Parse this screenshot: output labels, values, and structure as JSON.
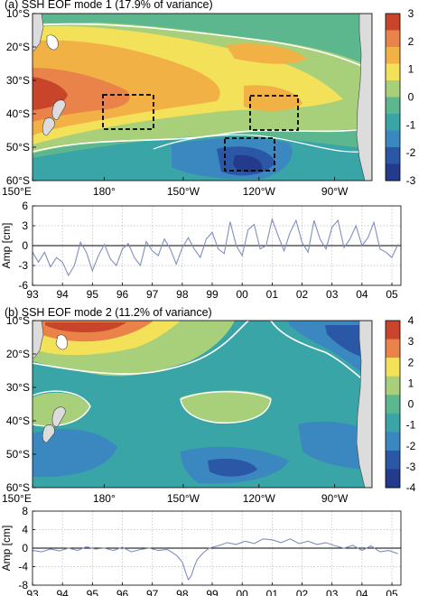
{
  "panels": [
    {
      "title": "(a) SSH EOF mode 1 (17.9% of variance)",
      "lat_ticks": [
        "10°S",
        "20°S",
        "30°S",
        "40°S",
        "50°S",
        "60°S"
      ],
      "lon_ticks": [
        "150°E",
        "180°",
        "150°W",
        "120°W",
        "90°W"
      ],
      "colorbar_ticks": [
        "3",
        "2",
        "1",
        "0",
        "-1",
        "-2",
        "-3"
      ],
      "colorbar_colors": [
        "#c8452b",
        "#e9834a",
        "#f2b145",
        "#f4e15a",
        "#a8d07a",
        "#5db78e",
        "#3aa5a6",
        "#3b88c0",
        "#2a57a6",
        "#233b8a"
      ]
    },
    {
      "title": "(b) SSH EOF mode 2 (11.2% of variance)",
      "lat_ticks": [
        "10°S",
        "20°S",
        "30°S",
        "40°S",
        "50°S",
        "60°S"
      ],
      "lon_ticks": [
        "150°E",
        "180°",
        "150°W",
        "120°W",
        "90°W"
      ],
      "colorbar_ticks": [
        "4",
        "3",
        "2",
        "1",
        "0",
        "-1",
        "-2",
        "-3",
        "-4"
      ],
      "colorbar_colors": [
        "#c8452b",
        "#e9834a",
        "#f4e15a",
        "#a8d07a",
        "#5db78e",
        "#3aa5a6",
        "#3b88c0",
        "#2a57a6",
        "#233b8a"
      ]
    }
  ],
  "chart_data": [
    {
      "type": "line",
      "ylabel": "Amp [cm]",
      "ylim": [
        -6,
        6
      ],
      "yticks": [
        6,
        3,
        0,
        -3,
        -6
      ],
      "xlim": [
        1993,
        2005.3
      ],
      "xticks": [
        "93",
        "94",
        "95",
        "96",
        "97",
        "98",
        "99",
        "00",
        "01",
        "02",
        "03",
        "04",
        "05"
      ],
      "grid": true,
      "color": "#7f8fbf",
      "x": [
        1993.0,
        1993.2,
        1993.4,
        1993.6,
        1993.8,
        1994.0,
        1994.2,
        1994.4,
        1994.6,
        1994.8,
        1995.0,
        1995.2,
        1995.4,
        1995.6,
        1995.8,
        1996.0,
        1996.2,
        1996.4,
        1996.6,
        1996.8,
        1997.0,
        1997.2,
        1997.4,
        1997.6,
        1997.8,
        1998.0,
        1998.2,
        1998.4,
        1998.6,
        1998.8,
        1999.0,
        1999.2,
        1999.4,
        1999.6,
        1999.8,
        2000.0,
        2000.2,
        2000.4,
        2000.6,
        2000.8,
        2001.0,
        2001.2,
        2001.4,
        2001.6,
        2001.8,
        2002.0,
        2002.2,
        2002.4,
        2002.6,
        2002.8,
        2003.0,
        2003.2,
        2003.4,
        2003.6,
        2003.8,
        2004.0,
        2004.2,
        2004.4,
        2004.6,
        2004.8,
        2005.0,
        2005.2
      ],
      "values": [
        -1.0,
        -2.5,
        -1.0,
        -3.2,
        -1.8,
        -2.5,
        -4.5,
        -3.0,
        0.5,
        -1.0,
        -3.8,
        -1.5,
        0.2,
        -2.0,
        -3.0,
        -0.5,
        0.3,
        -1.8,
        -3.0,
        0.6,
        -0.8,
        -1.5,
        1.0,
        -0.5,
        -2.8,
        -0.3,
        1.2,
        -0.5,
        -1.8,
        1.0,
        2.0,
        -0.5,
        -1.2,
        3.6,
        0.0,
        -1.5,
        2.4,
        3.2,
        -0.5,
        0.0,
        4.0,
        1.5,
        -0.8,
        2.0,
        3.8,
        0.5,
        -1.0,
        3.8,
        1.0,
        -0.5,
        2.8,
        3.8,
        -0.3,
        1.0,
        3.0,
        0.0,
        1.2,
        3.5,
        -0.5,
        -1.0,
        -1.8,
        0.2
      ]
    },
    {
      "type": "line",
      "ylabel": "Amp [cm]",
      "ylim": [
        -8,
        8
      ],
      "yticks": [
        8,
        4,
        0,
        -4,
        -8
      ],
      "xlim": [
        1993,
        2005.3
      ],
      "xticks": [
        "93",
        "94",
        "95",
        "96",
        "97",
        "98",
        "99",
        "00",
        "01",
        "02",
        "03",
        "04",
        "05"
      ],
      "grid": true,
      "color": "#7f8fbf",
      "x": [
        1993.0,
        1993.3,
        1993.6,
        1993.9,
        1994.2,
        1994.5,
        1994.8,
        1995.1,
        1995.4,
        1995.7,
        1996.0,
        1996.3,
        1996.6,
        1996.9,
        1997.2,
        1997.5,
        1997.8,
        1998.0,
        1998.1,
        1998.2,
        1998.3,
        1998.4,
        1998.5,
        1998.7,
        1998.9,
        1999.2,
        1999.5,
        1999.8,
        2000.1,
        2000.4,
        2000.7,
        2001.0,
        2001.3,
        2001.6,
        2001.9,
        2002.2,
        2002.5,
        2002.8,
        2003.1,
        2003.4,
        2003.7,
        2004.0,
        2004.3,
        2004.6,
        2004.9,
        2005.2
      ],
      "values": [
        -0.5,
        -0.8,
        -0.2,
        -0.6,
        0.0,
        -0.5,
        0.3,
        -0.2,
        0.0,
        -0.5,
        0.2,
        -0.8,
        -0.3,
        0.0,
        -0.5,
        -0.3,
        -1.5,
        -3.0,
        -5.0,
        -6.8,
        -6.0,
        -4.0,
        -2.5,
        -1.0,
        0.0,
        0.5,
        1.2,
        0.8,
        1.5,
        1.0,
        2.0,
        1.8,
        1.2,
        2.0,
        1.0,
        1.5,
        0.8,
        1.2,
        0.5,
        0.0,
        0.6,
        -0.5,
        0.5,
        -0.8,
        -0.5,
        -1.2
      ]
    }
  ]
}
